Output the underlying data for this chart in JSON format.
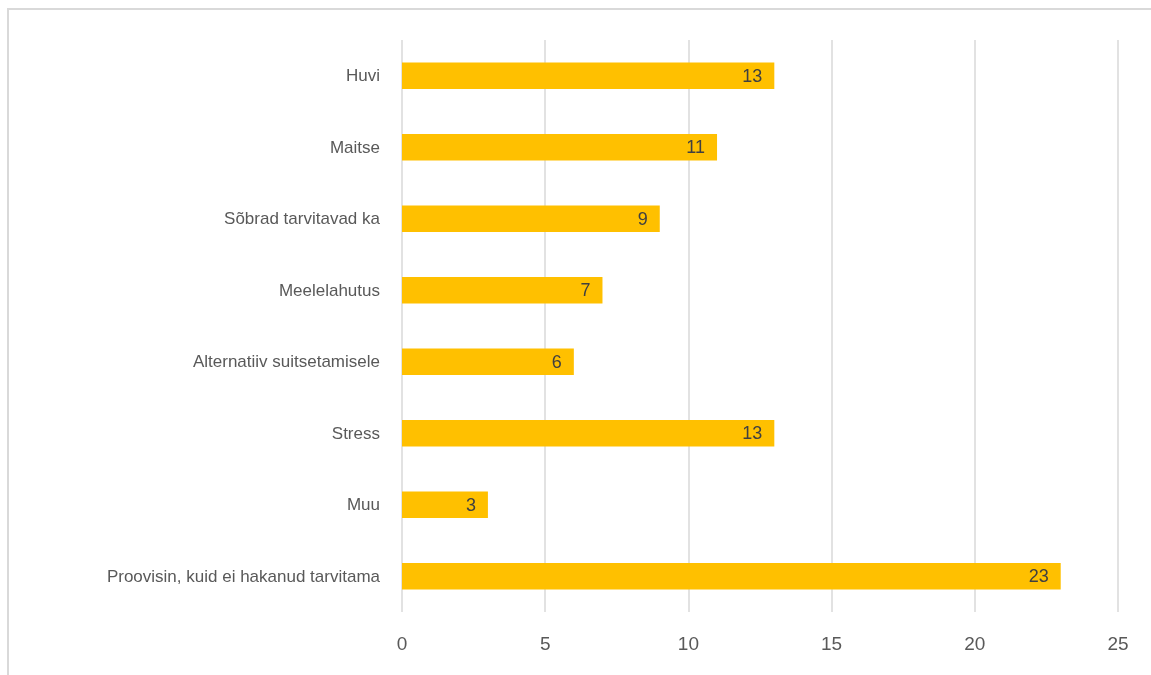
{
  "chart_data": {
    "type": "bar",
    "orientation": "horizontal",
    "categories": [
      "Huvi",
      "Maitse",
      "Sõbrad tarvitavad ka",
      "Meelelahutus",
      "Alternatiiv suitsetamisele",
      "Stress",
      "Muu",
      "Proovisin, kuid ei hakanud tarvitama"
    ],
    "values": [
      13,
      11,
      9,
      7,
      6,
      13,
      3,
      23
    ],
    "color": "#ffc000",
    "xlim": [
      0,
      25
    ],
    "xticks": [
      0,
      5,
      10,
      15,
      20,
      25
    ],
    "grid": "x",
    "data_labels": true
  }
}
